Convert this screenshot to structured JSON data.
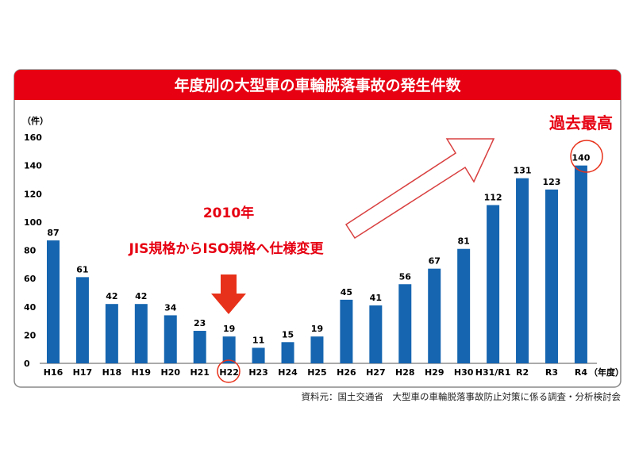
{
  "chart_data": {
    "type": "bar",
    "title": "年度別の大型車の車輪脱落事故の発生件数",
    "ylabel": "（件）",
    "xlabel": "（年度）",
    "ylim": [
      0,
      160
    ],
    "yticks": [
      0,
      20,
      40,
      60,
      80,
      100,
      120,
      140,
      160
    ],
    "categories": [
      "H16",
      "H17",
      "H18",
      "H19",
      "H20",
      "H21",
      "H22",
      "H23",
      "H24",
      "H25",
      "H26",
      "H27",
      "H28",
      "H29",
      "H30",
      "H31/R1",
      "R2",
      "R3",
      "R4"
    ],
    "values": [
      87,
      61,
      42,
      42,
      34,
      23,
      19,
      11,
      15,
      19,
      45,
      41,
      56,
      67,
      81,
      112,
      131,
      123,
      140
    ],
    "grid": false,
    "colors": {
      "bar": "#1565b0",
      "header": "#e60012",
      "accent": "#e8311a"
    },
    "annotations": {
      "year": "2010年",
      "change": "JIS規格からISO規格へ仕様変更",
      "record": "過去最高"
    }
  },
  "source": "資料元：国土交通省　大型車の車輪脱落事故防止対策に係る調査・分析検討会"
}
